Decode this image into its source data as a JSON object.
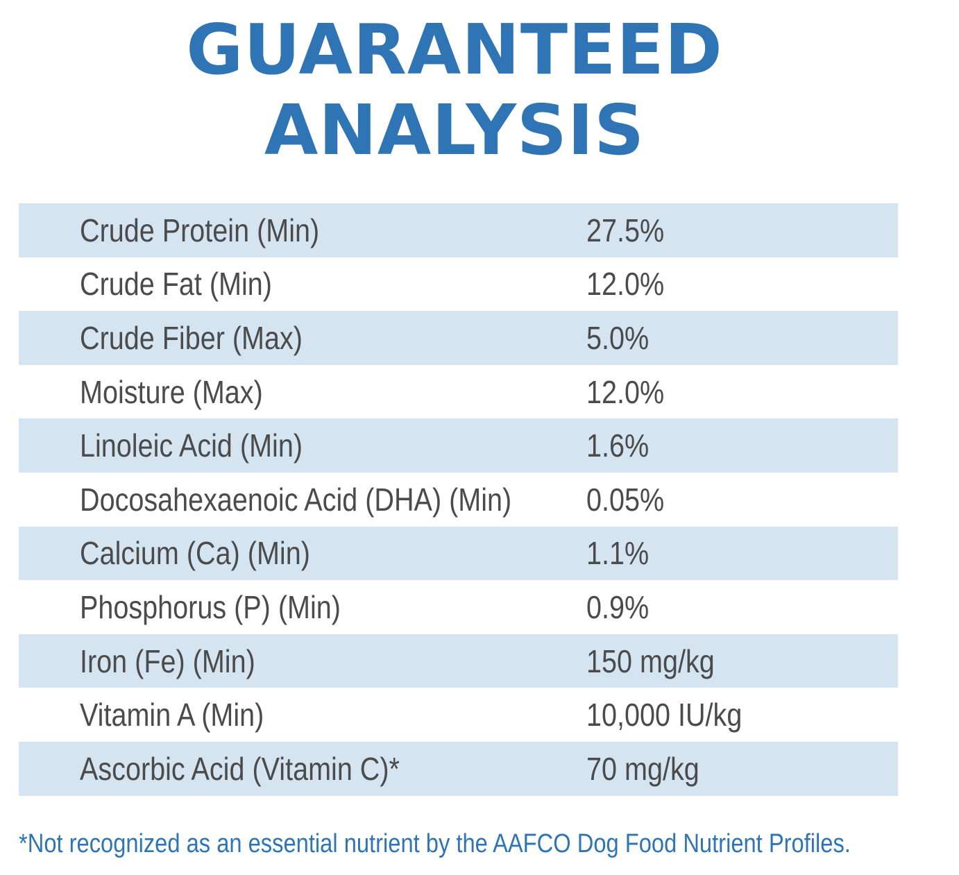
{
  "heading": {
    "line1": "GUARANTEED",
    "line2": "ANALYSIS"
  },
  "colors": {
    "heading": "#2f74b5",
    "row_shade": "#d4e4f1",
    "text": "#4b4b4b"
  },
  "rows": [
    {
      "name": "Crude Protein (Min)",
      "value": "27.5%"
    },
    {
      "name": "Crude Fat (Min)",
      "value": "12.0%"
    },
    {
      "name": "Crude Fiber (Max)",
      "value": "5.0%"
    },
    {
      "name": "Moisture (Max)",
      "value": "12.0%"
    },
    {
      "name": "Linoleic Acid (Min)",
      "value": "1.6%"
    },
    {
      "name": "Docosahexaenoic Acid (DHA) (Min)",
      "value": "0.05%"
    },
    {
      "name": "Calcium (Ca) (Min)",
      "value": "1.1%"
    },
    {
      "name": "Phosphorus (P) (Min)",
      "value": "0.9%"
    },
    {
      "name": "Iron (Fe) (Min)",
      "value": "150 mg/kg"
    },
    {
      "name": "Vitamin A (Min)",
      "value": "10,000 IU/kg"
    },
    {
      "name": "Ascorbic Acid (Vitamin C)*",
      "value": "70 mg/kg"
    }
  ],
  "footnote": "*Not recognized as an essential nutrient by the AAFCO Dog Food Nutrient Profiles."
}
